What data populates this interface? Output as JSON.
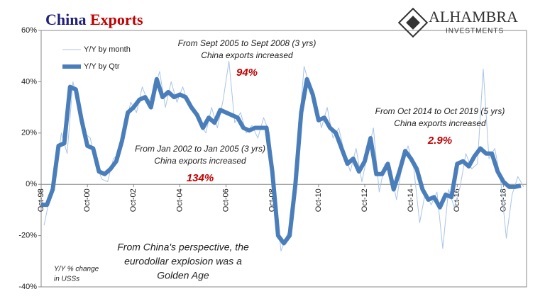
{
  "chart_data": {
    "type": "line",
    "title": "China",
    "title_highlight": "Exports",
    "logo": "ALHAMBRA",
    "logo_sub": "INVESTMENTS",
    "xlim": [
      1998.75,
      2019.75
    ],
    "xticks": [
      {
        "value": 1998.75,
        "label": "Oct-98"
      },
      {
        "value": 2000.75,
        "label": "Oct-00"
      },
      {
        "value": 2002.75,
        "label": "Oct-02"
      },
      {
        "value": 2004.75,
        "label": "Oct-04"
      },
      {
        "value": 2006.75,
        "label": "Oct-06"
      },
      {
        "value": 2008.75,
        "label": "Oct-08"
      },
      {
        "value": 2010.75,
        "label": "Oct-10"
      },
      {
        "value": 2012.75,
        "label": "Oct-12"
      },
      {
        "value": 2014.75,
        "label": "Oct-14"
      },
      {
        "value": 2016.75,
        "label": "Oct-16"
      },
      {
        "value": 2018.75,
        "label": "Oct-18"
      }
    ],
    "ylim": [
      -40,
      60
    ],
    "yticks": [
      {
        "value": -40,
        "label": "-40%"
      },
      {
        "value": -20,
        "label": "-20%"
      },
      {
        "value": 0,
        "label": "0%"
      },
      {
        "value": 20,
        "label": "20%"
      },
      {
        "value": 40,
        "label": "40%"
      },
      {
        "value": 60,
        "label": "60%"
      }
    ],
    "series": [
      {
        "name": "Y/Y by month",
        "color": "#a9c4e6",
        "width": 1,
        "x": [
          1998.875,
          1999.125,
          1999.375,
          1999.625,
          1999.875,
          2000.125,
          2000.375,
          2000.625,
          2000.875,
          2001.125,
          2001.375,
          2001.625,
          2001.875,
          2002.125,
          2002.375,
          2002.625,
          2002.875,
          2003.125,
          2003.375,
          2003.625,
          2003.875,
          2004.125,
          2004.375,
          2004.625,
          2004.875,
          2005.125,
          2005.375,
          2005.625,
          2005.875,
          2006.125,
          2006.375,
          2006.625,
          2006.875,
          2007.125,
          2007.375,
          2007.625,
          2007.875,
          2008.125,
          2008.375,
          2008.625,
          2008.875,
          2009.125,
          2009.375,
          2009.625,
          2009.875,
          2010.125,
          2010.375,
          2010.625,
          2010.875,
          2011.125,
          2011.375,
          2011.625,
          2011.875,
          2012.125,
          2012.375,
          2012.625,
          2012.875,
          2013.125,
          2013.375,
          2013.625,
          2013.875,
          2014.125,
          2014.375,
          2014.625,
          2014.875,
          2015.125,
          2015.375,
          2015.625,
          2015.875,
          2016.125,
          2016.375,
          2016.625,
          2016.875,
          2017.125,
          2017.375,
          2017.625,
          2017.875,
          2018.125,
          2018.375,
          2018.625,
          2018.875,
          2019.125,
          2019.375,
          2019.625
        ],
        "values": [
          -16,
          -5,
          4,
          20,
          12,
          40,
          30,
          20,
          18,
          8,
          2,
          1,
          10,
          12,
          22,
          32,
          28,
          38,
          32,
          36,
          44,
          30,
          40,
          32,
          38,
          31,
          28,
          24,
          20,
          30,
          22,
          33,
          48,
          24,
          28,
          20,
          23,
          18,
          26,
          20,
          -2,
          -26,
          -20,
          -15,
          18,
          46,
          38,
          32,
          22,
          30,
          18,
          22,
          12,
          5,
          14,
          1,
          12,
          22,
          -3,
          8,
          5,
          -6,
          8,
          15,
          6,
          -15,
          -3,
          -8,
          -3,
          -25,
          -2,
          -9,
          -1,
          12,
          6,
          8,
          45,
          10,
          14,
          2,
          -21,
          -4,
          3,
          -1
        ]
      },
      {
        "name": "Y/Y by Qtr",
        "color": "#4a7ebb",
        "width": 6,
        "x": [
          1998.75,
          1999,
          1999.25,
          1999.5,
          1999.75,
          2000,
          2000.25,
          2000.5,
          2000.75,
          2001,
          2001.25,
          2001.5,
          2001.75,
          2002,
          2002.25,
          2002.5,
          2002.75,
          2003,
          2003.25,
          2003.5,
          2003.75,
          2004,
          2004.25,
          2004.5,
          2004.75,
          2005,
          2005.25,
          2005.5,
          2005.75,
          2006,
          2006.25,
          2006.5,
          2006.75,
          2007,
          2007.25,
          2007.5,
          2007.75,
          2008,
          2008.25,
          2008.5,
          2008.75,
          2009,
          2009.25,
          2009.5,
          2009.75,
          2010,
          2010.25,
          2010.5,
          2010.75,
          2011,
          2011.25,
          2011.5,
          2011.75,
          2012,
          2012.25,
          2012.5,
          2012.75,
          2013,
          2013.25,
          2013.5,
          2013.75,
          2014,
          2014.25,
          2014.5,
          2014.75,
          2015,
          2015.25,
          2015.5,
          2015.75,
          2016,
          2016.25,
          2016.5,
          2016.75,
          2017,
          2017.25,
          2017.5,
          2017.75,
          2018,
          2018.25,
          2018.5,
          2018.75,
          2019,
          2019.25,
          2019.5
        ],
        "values": [
          -8,
          -8,
          -2,
          15,
          16,
          38,
          37,
          25,
          15,
          14,
          5,
          4,
          6,
          9,
          17,
          28,
          30,
          33,
          34,
          30,
          41,
          34,
          36,
          34,
          35,
          34,
          30,
          27,
          22,
          26,
          24,
          29,
          28,
          27,
          26,
          22,
          21,
          22,
          22,
          22,
          5,
          -20,
          -23,
          -20,
          0,
          28,
          41,
          35,
          25,
          26,
          22,
          20,
          14,
          8,
          10,
          5,
          9,
          18,
          4,
          4,
          8,
          -2,
          5,
          13,
          10,
          6,
          -2,
          -6,
          -5,
          -9,
          -4,
          -5,
          8,
          9,
          7,
          11,
          14,
          12,
          12,
          5,
          1,
          -1,
          -1,
          -0.5
        ]
      }
    ],
    "annotations": [
      {
        "lines": [
          "From Sept 2005 to Sept 2008 (3 yrs)",
          "China exports increased"
        ],
        "highlight": "94%"
      },
      {
        "lines": [
          "From Jan 2002 to Jan 2005 (3 yrs)",
          "China exports increased"
        ],
        "highlight": "134%"
      },
      {
        "lines": [
          "From Oct 2014 to Oct 2019 (5 yrs)",
          "China exports increased"
        ],
        "highlight": "2.9%"
      }
    ],
    "note": [
      "From China's perspective, the",
      "eurodollar explosion was a",
      "Golden Age"
    ],
    "footnote": [
      "Y/Y % change",
      "in USSs"
    ]
  }
}
